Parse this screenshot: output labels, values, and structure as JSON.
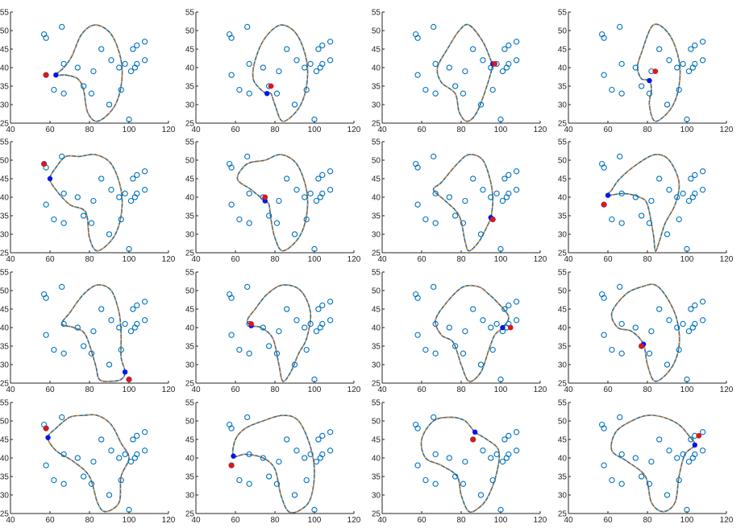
{
  "chart_data": {
    "type": "scatter",
    "layout": "4x4 grid of subplots",
    "xlim": [
      40,
      120
    ],
    "ylim": [
      25,
      55
    ],
    "xticks": [
      "40",
      "60",
      "80",
      "100",
      "120"
    ],
    "yticks": [
      "25",
      "30",
      "35",
      "40",
      "45",
      "50",
      "55"
    ],
    "points": [
      [
        57,
        49
      ],
      [
        58,
        48
      ],
      [
        66,
        51
      ],
      [
        58,
        38
      ],
      [
        62,
        34
      ],
      [
        67,
        41
      ],
      [
        74,
        40
      ],
      [
        67,
        33
      ],
      [
        77,
        35
      ],
      [
        81,
        33
      ],
      [
        82,
        39
      ],
      [
        86,
        45
      ],
      [
        90,
        30
      ],
      [
        91,
        42
      ],
      [
        95,
        40
      ],
      [
        96,
        34
      ],
      [
        98,
        41
      ],
      [
        102,
        45
      ],
      [
        104,
        46
      ],
      [
        108,
        47
      ],
      [
        103,
        40
      ],
      [
        104,
        41
      ],
      [
        108,
        42
      ],
      [
        101,
        39
      ],
      [
        100,
        26
      ]
    ],
    "panels": [
      {
        "red": [
          58,
          38
        ],
        "blue": [
          63,
          38
        ],
        "curve": [
          [
            63,
            38
          ],
          [
            67,
            40
          ],
          [
            71,
            43
          ],
          [
            76,
            49
          ],
          [
            83,
            51.5
          ],
          [
            91,
            49
          ],
          [
            96,
            42
          ],
          [
            96,
            35
          ],
          [
            92,
            29
          ],
          [
            84,
            25.5
          ],
          [
            79,
            28
          ],
          [
            77,
            34
          ],
          [
            74,
            37
          ],
          [
            68,
            38
          ]
        ]
      },
      {
        "red": [
          78,
          35
        ],
        "blue": [
          76,
          33
        ],
        "curve": [
          [
            76,
            33
          ],
          [
            73,
            34
          ],
          [
            69,
            37
          ],
          [
            70,
            42
          ],
          [
            75,
            48
          ],
          [
            83,
            51.5
          ],
          [
            91,
            49
          ],
          [
            96,
            42
          ],
          [
            96,
            35
          ],
          [
            92,
            29
          ],
          [
            84,
            25.5
          ],
          [
            80,
            30
          ],
          [
            78,
            33
          ]
        ]
      },
      {
        "red": [
          97,
          41
        ],
        "blue": [
          96,
          41
        ],
        "curve": [
          [
            96,
            41
          ],
          [
            93,
            35
          ],
          [
            88,
            28
          ],
          [
            83,
            25.5
          ],
          [
            79,
            28
          ],
          [
            77,
            33
          ],
          [
            70,
            36
          ],
          [
            68,
            40
          ],
          [
            73,
            45
          ],
          [
            79,
            50
          ],
          [
            84,
            51.5
          ],
          [
            91,
            47
          ],
          [
            95,
            42
          ]
        ]
      },
      {
        "red": [
          84,
          39
        ],
        "blue": [
          81,
          36.5
        ],
        "curve": [
          [
            81,
            36.5
          ],
          [
            77,
            37
          ],
          [
            75,
            40
          ],
          [
            77,
            44
          ],
          [
            83,
            51.5
          ],
          [
            91,
            49
          ],
          [
            96,
            42
          ],
          [
            96,
            35
          ],
          [
            92,
            29
          ],
          [
            84,
            25.5
          ],
          [
            81,
            30
          ],
          [
            82,
            34
          ]
        ]
      },
      {
        "red": [
          57,
          49
        ],
        "blue": [
          60,
          45
        ],
        "curve": [
          [
            60,
            45
          ],
          [
            63,
            48
          ],
          [
            68,
            51
          ],
          [
            75,
            51
          ],
          [
            83,
            51.5
          ],
          [
            91,
            49
          ],
          [
            96,
            42
          ],
          [
            96,
            35
          ],
          [
            92,
            29
          ],
          [
            84,
            25.5
          ],
          [
            80,
            29
          ],
          [
            78,
            36
          ],
          [
            70,
            38
          ],
          [
            63,
            42
          ]
        ]
      },
      {
        "red": [
          75,
          40
        ],
        "blue": [
          75,
          39
        ],
        "curve": [
          [
            75,
            39
          ],
          [
            68,
            42
          ],
          [
            61,
            45
          ],
          [
            66,
            49
          ],
          [
            75,
            50
          ],
          [
            83,
            51.5
          ],
          [
            91,
            49
          ],
          [
            96,
            42
          ],
          [
            96,
            35
          ],
          [
            92,
            29
          ],
          [
            84,
            25.5
          ],
          [
            80,
            29
          ],
          [
            78,
            34
          ],
          [
            77,
            38
          ]
        ]
      },
      {
        "red": [
          96,
          34
        ],
        "blue": [
          95,
          34.5
        ],
        "curve": [
          [
            95,
            34.5
          ],
          [
            96,
            39
          ],
          [
            95,
            44
          ],
          [
            91,
            50
          ],
          [
            84,
            51.5
          ],
          [
            78,
            49
          ],
          [
            70,
            44
          ],
          [
            66,
            42
          ],
          [
            72,
            39
          ],
          [
            79,
            35
          ],
          [
            82,
            28
          ],
          [
            84,
            25.5
          ],
          [
            89,
            28
          ],
          [
            93,
            32
          ]
        ]
      },
      {
        "red": [
          58,
          38
        ],
        "blue": [
          60,
          40.5
        ],
        "curve": [
          [
            60,
            40.5
          ],
          [
            68,
            41
          ],
          [
            76,
            40
          ],
          [
            80,
            38
          ],
          [
            83,
            30
          ],
          [
            84,
            25.5
          ],
          [
            86,
            28
          ],
          [
            89,
            33
          ],
          [
            94,
            38
          ],
          [
            96,
            44
          ],
          [
            91,
            50
          ],
          [
            84,
            51.5
          ],
          [
            75,
            49
          ],
          [
            66,
            45
          ],
          [
            62,
            42
          ]
        ]
      },
      {
        "red": [
          100,
          26
        ],
        "blue": [
          98,
          28
        ],
        "curve": [
          [
            98,
            28
          ],
          [
            96,
            32
          ],
          [
            96,
            38
          ],
          [
            95,
            44
          ],
          [
            91,
            50
          ],
          [
            84,
            51.5
          ],
          [
            77,
            49
          ],
          [
            70,
            44
          ],
          [
            66,
            41
          ],
          [
            72,
            40
          ],
          [
            78,
            38
          ],
          [
            83,
            30
          ],
          [
            85,
            26
          ],
          [
            91,
            25.5
          ],
          [
            96,
            26
          ]
        ]
      },
      {
        "red": [
          68,
          41
        ],
        "blue": [
          68,
          40.5
        ],
        "curve": [
          [
            68,
            40.5
          ],
          [
            73,
            40
          ],
          [
            79,
            37
          ],
          [
            82,
            30
          ],
          [
            84,
            25.5
          ],
          [
            88,
            28
          ],
          [
            92,
            33
          ],
          [
            96,
            37
          ],
          [
            98,
            44
          ],
          [
            93,
            50
          ],
          [
            84,
            51.5
          ],
          [
            76,
            49
          ],
          [
            70,
            45
          ],
          [
            66,
            42
          ]
        ]
      },
      {
        "red": [
          105,
          40
        ],
        "blue": [
          101,
          40
        ],
        "curve": [
          [
            101,
            40
          ],
          [
            97,
            38
          ],
          [
            94,
            34
          ],
          [
            90,
            28
          ],
          [
            84,
            25.5
          ],
          [
            80,
            30
          ],
          [
            76,
            36
          ],
          [
            70,
            38
          ],
          [
            67,
            42
          ],
          [
            73,
            47
          ],
          [
            81,
            51
          ],
          [
            89,
            51
          ],
          [
            94,
            49
          ],
          [
            98,
            47
          ],
          [
            104,
            43
          ]
        ]
      },
      {
        "red": [
          77,
          35
        ],
        "blue": [
          78,
          35.5
        ],
        "curve": [
          [
            78,
            35.5
          ],
          [
            72,
            39
          ],
          [
            65,
            40
          ],
          [
            62,
            44
          ],
          [
            69,
            49
          ],
          [
            77,
            51
          ],
          [
            84,
            51.5
          ],
          [
            90,
            48
          ],
          [
            95,
            42
          ],
          [
            96,
            35
          ],
          [
            92,
            29
          ],
          [
            84,
            25.5
          ],
          [
            80,
            30
          ]
        ]
      },
      {
        "red": [
          58,
          48
        ],
        "blue": [
          59,
          45.5
        ],
        "curve": [
          [
            59,
            45.5
          ],
          [
            63,
            48
          ],
          [
            70,
            51
          ],
          [
            77,
            51.5
          ],
          [
            84,
            51.5
          ],
          [
            91,
            49
          ],
          [
            96,
            44
          ],
          [
            100,
            40
          ],
          [
            96,
            35
          ],
          [
            95,
            28
          ],
          [
            88,
            25.5
          ],
          [
            84,
            28
          ],
          [
            80,
            35
          ],
          [
            72,
            39
          ],
          [
            63,
            42
          ]
        ]
      },
      {
        "red": [
          58,
          38
        ],
        "blue": [
          59,
          40.5
        ],
        "curve": [
          [
            59,
            40.5
          ],
          [
            65,
            41
          ],
          [
            74,
            40
          ],
          [
            80,
            37
          ],
          [
            83,
            30
          ],
          [
            87,
            25.5
          ],
          [
            93,
            26
          ],
          [
            98,
            29
          ],
          [
            100,
            36
          ],
          [
            98,
            43
          ],
          [
            92,
            50
          ],
          [
            84,
            51.5
          ],
          [
            74,
            50
          ],
          [
            65,
            48
          ],
          [
            60,
            45
          ]
        ]
      },
      {
        "red": [
          86,
          45
        ],
        "blue": [
          87,
          47
        ],
        "curve": [
          [
            87,
            47
          ],
          [
            93,
            45
          ],
          [
            99,
            42
          ],
          [
            98,
            36
          ],
          [
            94,
            30
          ],
          [
            90,
            27
          ],
          [
            84,
            25.5
          ],
          [
            80,
            30
          ],
          [
            78,
            35
          ],
          [
            70,
            38
          ],
          [
            62,
            40
          ],
          [
            60,
            45
          ],
          [
            66,
            50
          ],
          [
            75,
            51
          ],
          [
            82,
            50
          ]
        ]
      },
      {
        "red": [
          106,
          46
        ],
        "blue": [
          104,
          43.5
        ],
        "curve": [
          [
            104,
            43.5
          ],
          [
            99,
            41
          ],
          [
            96,
            35
          ],
          [
            94,
            28
          ],
          [
            88,
            25.5
          ],
          [
            82,
            28
          ],
          [
            79,
            35
          ],
          [
            70,
            39
          ],
          [
            62,
            42
          ],
          [
            64,
            47
          ],
          [
            72,
            50
          ],
          [
            80,
            51.5
          ],
          [
            88,
            51
          ],
          [
            96,
            49
          ],
          [
            101,
            46
          ]
        ]
      }
    ]
  }
}
